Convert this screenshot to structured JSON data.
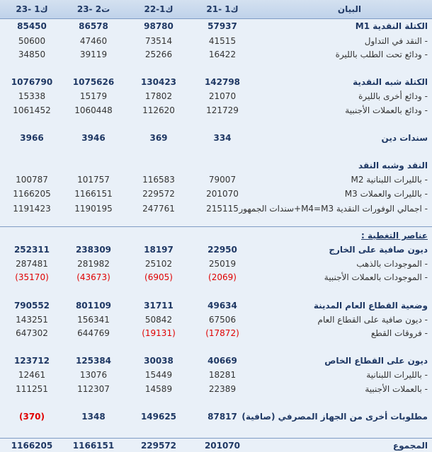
{
  "header": {
    "columns": [
      "ك1 -23",
      "ت2 -23",
      "ك1-22",
      "ك1 -21",
      "البيان"
    ]
  },
  "rows": [
    {
      "label": "الكتلة النقدية M1",
      "values": [
        "85450",
        "86578",
        "98780",
        "57937"
      ]
    },
    {
      "label": "- النقد في التداول",
      "values": [
        "50600",
        "47460",
        "73514",
        "41515"
      ]
    },
    {
      "label": "- ودائع تحت الطلب بالليرة",
      "values": [
        "34850",
        "39119",
        "25266",
        "16422"
      ]
    },
    {
      "label": "الكتلة شبه النقدية",
      "values": [
        "1076790",
        "1075626",
        "130423",
        "142798"
      ]
    },
    {
      "label": "- ودائع أخرى بالليرة",
      "values": [
        "15338",
        "15179",
        "17802",
        "21070"
      ]
    },
    {
      "label": "- ودائع بالعملات الأجنبية",
      "values": [
        "1061452",
        "1060448",
        "112620",
        "121729"
      ]
    },
    {
      "label": "سندات دين",
      "values": [
        "3966",
        "3946",
        "369",
        "334"
      ]
    },
    {
      "label": "النقد وشبه النقد",
      "values": []
    },
    {
      "label": "- بالليرات اللبنانية M2",
      "values": [
        "100787",
        "101757",
        "116583",
        "79007"
      ]
    },
    {
      "label": "- بالليرات والعملات M3",
      "values": [
        "1166205",
        "1166151",
        "229572",
        "201070"
      ]
    },
    {
      "label": "- اجمالي الوفورات النقدية M4=M3+سندات الجمهور",
      "values": [
        "1191423",
        "1190195",
        "247761",
        "215115"
      ]
    },
    {
      "label": "ديون صافية على الخارج",
      "values": [
        "252311",
        "238309",
        "18197",
        "22950"
      ]
    },
    {
      "label": "- الموجودات بالذهب",
      "values": [
        "287481",
        "281982",
        "25102",
        "25019"
      ]
    },
    {
      "label": "- الموجودات بالعملات الأجنبية",
      "values": [
        "(35170)",
        "(43673)",
        "(6905)",
        "(2069)"
      ]
    },
    {
      "label": "وضعية القطاع العام المدينة",
      "values": [
        "790552",
        "801109",
        "31711",
        "49634"
      ]
    },
    {
      "label": "- ديون صافية على القطاع العام",
      "values": [
        "143251",
        "156341",
        "50842",
        "67506"
      ]
    },
    {
      "label": "- فروقات القطع",
      "values": [
        "647302",
        "644769",
        "(19131)",
        "(17872)"
      ]
    },
    {
      "label": "ديون على القطاع الخاص",
      "values": [
        "123712",
        "125384",
        "30038",
        "40669"
      ]
    },
    {
      "label": "- بالليرات اللبنانية",
      "values": [
        "12461",
        "13076",
        "15449",
        "18281"
      ]
    },
    {
      "label": "- بالعملات الأجنبية",
      "values": [
        "111251",
        "112307",
        "14589",
        "22389"
      ]
    },
    {
      "label": "مطلوبات أخرى من الجهاز المصرفي (صافية)",
      "values": [
        "(370)",
        "1348",
        "149625",
        "87817"
      ]
    }
  ],
  "coverage_title": "عناصر التغطية :",
  "total": {
    "label": "المجموع",
    "values": [
      "1166205",
      "1166151",
      "229572",
      "201070"
    ]
  }
}
